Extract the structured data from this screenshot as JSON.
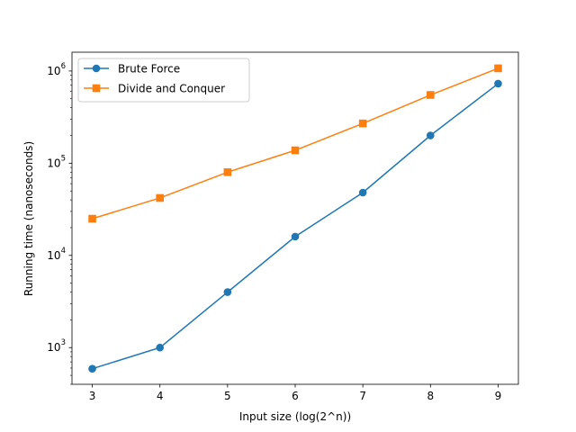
{
  "chart_data": {
    "type": "line",
    "title": "",
    "xlabel": "Input size (log(2^n))",
    "ylabel": "Running time (nanoseconds)",
    "x": [
      3,
      4,
      5,
      6,
      7,
      8,
      9
    ],
    "xlim": [
      2.7,
      9.3
    ],
    "ylim": [
      400,
      1600000
    ],
    "yscale": "log",
    "x_ticks": [
      "3",
      "4",
      "5",
      "6",
      "7",
      "8",
      "9"
    ],
    "y_ticks": [
      {
        "value": 1000,
        "base": "10",
        "exp": "3"
      },
      {
        "value": 10000,
        "base": "10",
        "exp": "4"
      },
      {
        "value": 100000,
        "base": "10",
        "exp": "5"
      },
      {
        "value": 1000000,
        "base": "10",
        "exp": "6"
      }
    ],
    "grid": false,
    "legend_position": "top-left",
    "series": [
      {
        "name": "Brute Force",
        "color": "#1f77b4",
        "marker": "circle",
        "values": [
          590,
          1000,
          4000,
          16000,
          48000,
          200000,
          730000
        ]
      },
      {
        "name": "Divide and Conquer",
        "color": "#ff7f0e",
        "marker": "square",
        "values": [
          25000,
          42000,
          80000,
          138000,
          270000,
          550000,
          1070000
        ]
      }
    ]
  }
}
